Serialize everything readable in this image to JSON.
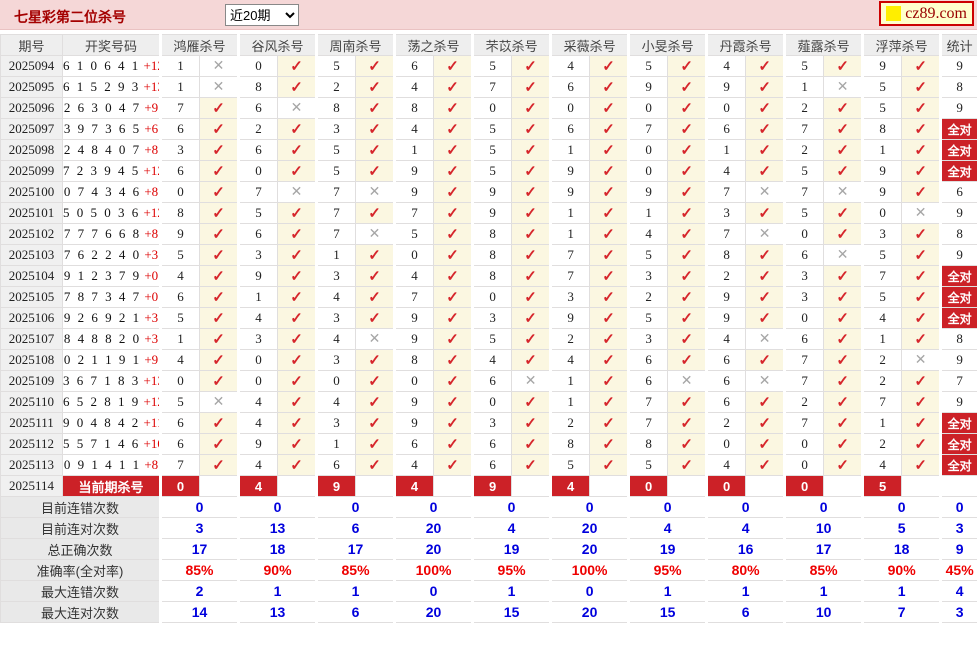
{
  "header": {
    "title": "七星彩第二位杀号",
    "period_select": "近20期",
    "logo": "cz89.com"
  },
  "icons": {
    "check": "✓",
    "cross": "✕"
  },
  "table": {
    "columns": {
      "period": "期号",
      "draw": "开奖号码",
      "experts": [
        "鸿雁杀号",
        "谷风杀号",
        "周南杀号",
        "荡之杀号",
        "芣苡杀号",
        "采薇杀号",
        "小旻杀号",
        "丹霞杀号",
        "薤露杀号",
        "浮萍杀号"
      ],
      "stat": "统计"
    },
    "labels": {
      "all_right": "全对",
      "current": "当前期杀号"
    },
    "rows": [
      {
        "period": "2025094",
        "draw": "610641",
        "plus": "+12",
        "cells": [
          [
            "1",
            "x"
          ],
          [
            "0",
            "v"
          ],
          [
            "5",
            "v"
          ],
          [
            "6",
            "v"
          ],
          [
            "5",
            "v"
          ],
          [
            "4",
            "v"
          ],
          [
            "5",
            "v"
          ],
          [
            "4",
            "v"
          ],
          [
            "5",
            "v"
          ],
          [
            "9",
            "v"
          ]
        ],
        "stat": "9"
      },
      {
        "period": "2025095",
        "draw": "615293",
        "plus": "+13",
        "cells": [
          [
            "1",
            "x"
          ],
          [
            "8",
            "v"
          ],
          [
            "2",
            "v"
          ],
          [
            "4",
            "v"
          ],
          [
            "7",
            "v"
          ],
          [
            "6",
            "v"
          ],
          [
            "9",
            "v"
          ],
          [
            "9",
            "v"
          ],
          [
            "1",
            "x"
          ],
          [
            "5",
            "v"
          ]
        ],
        "stat": "8"
      },
      {
        "period": "2025096",
        "draw": "263047",
        "plus": "+9",
        "cells": [
          [
            "7",
            "v"
          ],
          [
            "6",
            "x"
          ],
          [
            "8",
            "v"
          ],
          [
            "8",
            "v"
          ],
          [
            "0",
            "v"
          ],
          [
            "0",
            "v"
          ],
          [
            "0",
            "v"
          ],
          [
            "0",
            "v"
          ],
          [
            "2",
            "v"
          ],
          [
            "5",
            "v"
          ]
        ],
        "stat": "9"
      },
      {
        "period": "2025097",
        "draw": "397365",
        "plus": "+6",
        "cells": [
          [
            "6",
            "v"
          ],
          [
            "2",
            "v"
          ],
          [
            "3",
            "v"
          ],
          [
            "4",
            "v"
          ],
          [
            "5",
            "v"
          ],
          [
            "6",
            "v"
          ],
          [
            "7",
            "v"
          ],
          [
            "6",
            "v"
          ],
          [
            "7",
            "v"
          ],
          [
            "8",
            "v"
          ]
        ],
        "stat": "全对"
      },
      {
        "period": "2025098",
        "draw": "248407",
        "plus": "+8",
        "cells": [
          [
            "3",
            "v"
          ],
          [
            "6",
            "v"
          ],
          [
            "5",
            "v"
          ],
          [
            "1",
            "v"
          ],
          [
            "5",
            "v"
          ],
          [
            "1",
            "v"
          ],
          [
            "0",
            "v"
          ],
          [
            "1",
            "v"
          ],
          [
            "2",
            "v"
          ],
          [
            "1",
            "v"
          ]
        ],
        "stat": "全对"
      },
      {
        "period": "2025099",
        "draw": "723945",
        "plus": "+12",
        "cells": [
          [
            "6",
            "v"
          ],
          [
            "0",
            "v"
          ],
          [
            "5",
            "v"
          ],
          [
            "9",
            "v"
          ],
          [
            "5",
            "v"
          ],
          [
            "9",
            "v"
          ],
          [
            "0",
            "v"
          ],
          [
            "4",
            "v"
          ],
          [
            "5",
            "v"
          ],
          [
            "9",
            "v"
          ]
        ],
        "stat": "全对"
      },
      {
        "period": "2025100",
        "draw": "074346",
        "plus": "+8",
        "cells": [
          [
            "0",
            "v"
          ],
          [
            "7",
            "x"
          ],
          [
            "7",
            "x"
          ],
          [
            "9",
            "v"
          ],
          [
            "9",
            "v"
          ],
          [
            "9",
            "v"
          ],
          [
            "9",
            "v"
          ],
          [
            "7",
            "x"
          ],
          [
            "7",
            "x"
          ],
          [
            "9",
            "v"
          ]
        ],
        "stat": "6"
      },
      {
        "period": "2025101",
        "draw": "505036",
        "plus": "+12",
        "cells": [
          [
            "8",
            "v"
          ],
          [
            "5",
            "v"
          ],
          [
            "7",
            "v"
          ],
          [
            "7",
            "v"
          ],
          [
            "9",
            "v"
          ],
          [
            "1",
            "v"
          ],
          [
            "1",
            "v"
          ],
          [
            "3",
            "v"
          ],
          [
            "5",
            "v"
          ],
          [
            "0",
            "x"
          ]
        ],
        "stat": "9"
      },
      {
        "period": "2025102",
        "draw": "777668",
        "plus": "+8",
        "cells": [
          [
            "9",
            "v"
          ],
          [
            "6",
            "v"
          ],
          [
            "7",
            "x"
          ],
          [
            "5",
            "v"
          ],
          [
            "8",
            "v"
          ],
          [
            "1",
            "v"
          ],
          [
            "4",
            "v"
          ],
          [
            "7",
            "x"
          ],
          [
            "0",
            "v"
          ],
          [
            "3",
            "v"
          ]
        ],
        "stat": "8"
      },
      {
        "period": "2025103",
        "draw": "762240",
        "plus": "+3",
        "cells": [
          [
            "5",
            "v"
          ],
          [
            "3",
            "v"
          ],
          [
            "1",
            "v"
          ],
          [
            "0",
            "v"
          ],
          [
            "8",
            "v"
          ],
          [
            "7",
            "v"
          ],
          [
            "5",
            "v"
          ],
          [
            "8",
            "v"
          ],
          [
            "6",
            "x"
          ],
          [
            "5",
            "v"
          ]
        ],
        "stat": "9"
      },
      {
        "period": "2025104",
        "draw": "912379",
        "plus": "+0",
        "cells": [
          [
            "4",
            "v"
          ],
          [
            "9",
            "v"
          ],
          [
            "3",
            "v"
          ],
          [
            "4",
            "v"
          ],
          [
            "8",
            "v"
          ],
          [
            "7",
            "v"
          ],
          [
            "3",
            "v"
          ],
          [
            "2",
            "v"
          ],
          [
            "3",
            "v"
          ],
          [
            "7",
            "v"
          ]
        ],
        "stat": "全对"
      },
      {
        "period": "2025105",
        "draw": "787347",
        "plus": "+0",
        "cells": [
          [
            "6",
            "v"
          ],
          [
            "1",
            "v"
          ],
          [
            "4",
            "v"
          ],
          [
            "7",
            "v"
          ],
          [
            "0",
            "v"
          ],
          [
            "3",
            "v"
          ],
          [
            "2",
            "v"
          ],
          [
            "9",
            "v"
          ],
          [
            "3",
            "v"
          ],
          [
            "5",
            "v"
          ]
        ],
        "stat": "全对"
      },
      {
        "period": "2025106",
        "draw": "926921",
        "plus": "+3",
        "cells": [
          [
            "5",
            "v"
          ],
          [
            "4",
            "v"
          ],
          [
            "3",
            "v"
          ],
          [
            "9",
            "v"
          ],
          [
            "3",
            "v"
          ],
          [
            "9",
            "v"
          ],
          [
            "5",
            "v"
          ],
          [
            "9",
            "v"
          ],
          [
            "0",
            "v"
          ],
          [
            "4",
            "v"
          ]
        ],
        "stat": "全对"
      },
      {
        "period": "2025107",
        "draw": "848820",
        "plus": "+3",
        "cells": [
          [
            "1",
            "v"
          ],
          [
            "3",
            "v"
          ],
          [
            "4",
            "x"
          ],
          [
            "9",
            "v"
          ],
          [
            "5",
            "v"
          ],
          [
            "2",
            "v"
          ],
          [
            "3",
            "v"
          ],
          [
            "4",
            "x"
          ],
          [
            "6",
            "v"
          ],
          [
            "1",
            "v"
          ]
        ],
        "stat": "8"
      },
      {
        "period": "2025108",
        "draw": "021191",
        "plus": "+9",
        "cells": [
          [
            "4",
            "v"
          ],
          [
            "0",
            "v"
          ],
          [
            "3",
            "v"
          ],
          [
            "8",
            "v"
          ],
          [
            "4",
            "v"
          ],
          [
            "4",
            "v"
          ],
          [
            "6",
            "v"
          ],
          [
            "6",
            "v"
          ],
          [
            "7",
            "v"
          ],
          [
            "2",
            "x"
          ]
        ],
        "stat": "9"
      },
      {
        "period": "2025109",
        "draw": "367183",
        "plus": "+13",
        "cells": [
          [
            "0",
            "v"
          ],
          [
            "0",
            "v"
          ],
          [
            "0",
            "v"
          ],
          [
            "0",
            "v"
          ],
          [
            "6",
            "x"
          ],
          [
            "1",
            "v"
          ],
          [
            "6",
            "x"
          ],
          [
            "6",
            "x"
          ],
          [
            "7",
            "v"
          ],
          [
            "2",
            "v"
          ]
        ],
        "stat": "7"
      },
      {
        "period": "2025110",
        "draw": "652819",
        "plus": "+12",
        "cells": [
          [
            "5",
            "x"
          ],
          [
            "4",
            "v"
          ],
          [
            "4",
            "v"
          ],
          [
            "9",
            "v"
          ],
          [
            "0",
            "v"
          ],
          [
            "1",
            "v"
          ],
          [
            "7",
            "v"
          ],
          [
            "6",
            "v"
          ],
          [
            "2",
            "v"
          ],
          [
            "7",
            "v"
          ]
        ],
        "stat": "9"
      },
      {
        "period": "2025111",
        "draw": "904842",
        "plus": "+11",
        "cells": [
          [
            "6",
            "v"
          ],
          [
            "4",
            "v"
          ],
          [
            "3",
            "v"
          ],
          [
            "9",
            "v"
          ],
          [
            "3",
            "v"
          ],
          [
            "2",
            "v"
          ],
          [
            "7",
            "v"
          ],
          [
            "2",
            "v"
          ],
          [
            "7",
            "v"
          ],
          [
            "1",
            "v"
          ]
        ],
        "stat": "全对"
      },
      {
        "period": "2025112",
        "draw": "557146",
        "plus": "+10",
        "cells": [
          [
            "6",
            "v"
          ],
          [
            "9",
            "v"
          ],
          [
            "1",
            "v"
          ],
          [
            "6",
            "v"
          ],
          [
            "6",
            "v"
          ],
          [
            "8",
            "v"
          ],
          [
            "8",
            "v"
          ],
          [
            "0",
            "v"
          ],
          [
            "0",
            "v"
          ],
          [
            "2",
            "v"
          ]
        ],
        "stat": "全对"
      },
      {
        "period": "2025113",
        "draw": "091411",
        "plus": "+8",
        "cells": [
          [
            "7",
            "v"
          ],
          [
            "4",
            "v"
          ],
          [
            "6",
            "v"
          ],
          [
            "4",
            "v"
          ],
          [
            "6",
            "v"
          ],
          [
            "5",
            "v"
          ],
          [
            "5",
            "v"
          ],
          [
            "4",
            "v"
          ],
          [
            "0",
            "v"
          ],
          [
            "4",
            "v"
          ]
        ],
        "stat": "全对"
      }
    ],
    "current_row": {
      "period": "2025114",
      "label": "当前期杀号",
      "kills": [
        "0",
        "4",
        "9",
        "4",
        "9",
        "4",
        "0",
        "0",
        "0",
        "5"
      ]
    },
    "summary": [
      {
        "label": "目前连错次数",
        "type": "blue",
        "values": [
          "0",
          "0",
          "0",
          "0",
          "0",
          "0",
          "0",
          "0",
          "0",
          "0"
        ],
        "stat": "0"
      },
      {
        "label": "目前连对次数",
        "type": "blue",
        "values": [
          "3",
          "13",
          "6",
          "20",
          "4",
          "20",
          "4",
          "4",
          "10",
          "5"
        ],
        "stat": "3"
      },
      {
        "label": "总正确次数",
        "type": "blue",
        "values": [
          "17",
          "18",
          "17",
          "20",
          "19",
          "20",
          "19",
          "16",
          "17",
          "18"
        ],
        "stat": "9"
      },
      {
        "label": "准确率(全对率)",
        "type": "red",
        "values": [
          "85%",
          "90%",
          "85%",
          "100%",
          "95%",
          "100%",
          "95%",
          "80%",
          "85%",
          "90%"
        ],
        "stat": "45%"
      },
      {
        "label": "最大连错次数",
        "type": "blue",
        "values": [
          "2",
          "1",
          "1",
          "0",
          "1",
          "0",
          "1",
          "1",
          "1",
          "1"
        ],
        "stat": "4"
      },
      {
        "label": "最大连对次数",
        "type": "blue",
        "values": [
          "14",
          "13",
          "6",
          "20",
          "15",
          "20",
          "15",
          "6",
          "10",
          "7"
        ],
        "stat": "3"
      }
    ]
  },
  "colors": {
    "topbar_bg": "#f5d7d7",
    "title_red": "#a40000",
    "cell_red": "#cc2127",
    "check_red": "#d6262c",
    "cross_gray": "#a6a6a6",
    "mark_cream": "#fbf7e1",
    "value_blue": "#0000dd",
    "percent_red": "#ee0000"
  }
}
